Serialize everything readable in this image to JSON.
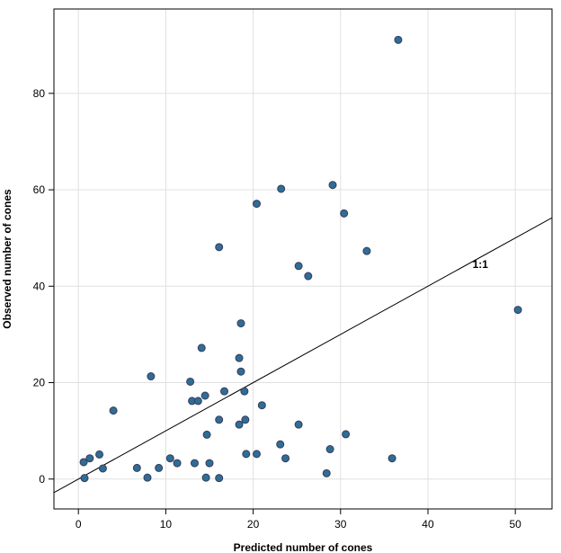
{
  "chart_data": {
    "type": "scatter",
    "title": "",
    "xlabel": "Predicted number of cones",
    "ylabel": "Observed number of cones",
    "xlim": [
      -2.8,
      54.2
    ],
    "ylim": [
      -6.2,
      97.5
    ],
    "x_ticks": [
      0,
      10,
      20,
      30,
      40,
      50
    ],
    "y_ticks": [
      0,
      20,
      40,
      60,
      80
    ],
    "grid": true,
    "point_color": "#2d6e96",
    "point_edge_color": "#3a3a5a",
    "reference_line": {
      "label": "1:1",
      "label_at": [
        46,
        44.5
      ],
      "from": [
        -2.8,
        -2.8
      ],
      "to": [
        54.2,
        54.2
      ]
    },
    "series": [
      {
        "name": "observations",
        "points": [
          [
            0.6,
            3.5
          ],
          [
            0.7,
            0.2
          ],
          [
            1.3,
            4.3
          ],
          [
            2.4,
            5.1
          ],
          [
            2.8,
            2.2
          ],
          [
            4.0,
            14.2
          ],
          [
            6.7,
            2.3
          ],
          [
            7.9,
            0.3
          ],
          [
            8.3,
            21.3
          ],
          [
            9.2,
            2.3
          ],
          [
            10.5,
            4.3
          ],
          [
            11.3,
            3.3
          ],
          [
            12.8,
            20.2
          ],
          [
            13.0,
            16.2
          ],
          [
            13.3,
            3.3
          ],
          [
            13.7,
            16.2
          ],
          [
            14.1,
            27.2
          ],
          [
            14.5,
            17.3
          ],
          [
            14.7,
            9.2
          ],
          [
            14.6,
            0.3
          ],
          [
            15.0,
            3.3
          ],
          [
            16.1,
            12.3
          ],
          [
            16.1,
            48.1
          ],
          [
            16.1,
            0.2
          ],
          [
            16.7,
            18.2
          ],
          [
            18.4,
            25.1
          ],
          [
            18.4,
            11.3
          ],
          [
            18.6,
            32.3
          ],
          [
            18.6,
            22.3
          ],
          [
            19.0,
            18.2
          ],
          [
            19.1,
            12.3
          ],
          [
            19.2,
            5.2
          ],
          [
            20.4,
            5.2
          ],
          [
            20.4,
            57.1
          ],
          [
            21.0,
            15.3
          ],
          [
            23.1,
            7.2
          ],
          [
            23.2,
            60.2
          ],
          [
            23.7,
            4.3
          ],
          [
            25.2,
            44.2
          ],
          [
            25.2,
            11.3
          ],
          [
            26.3,
            42.1
          ],
          [
            28.4,
            1.2
          ],
          [
            28.8,
            6.2
          ],
          [
            29.1,
            61.0
          ],
          [
            30.4,
            55.1
          ],
          [
            30.6,
            9.3
          ],
          [
            33.0,
            47.3
          ],
          [
            35.9,
            4.3
          ],
          [
            36.6,
            91.1
          ],
          [
            50.3,
            35.1
          ]
        ]
      }
    ]
  }
}
